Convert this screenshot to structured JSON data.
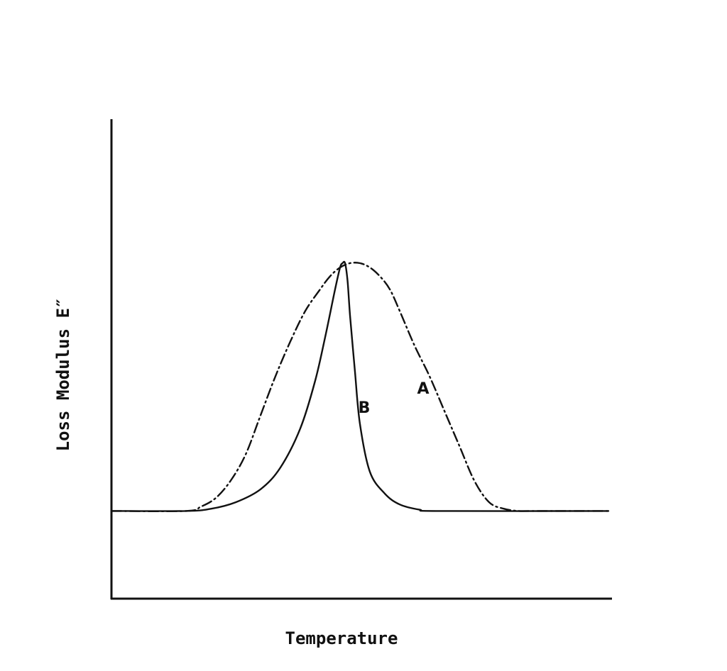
{
  "chart_data": {
    "type": "line",
    "xlabel": "Temperature",
    "ylabel": "Loss Modulus E″",
    "grid": false,
    "legend": "none",
    "x_ticks": "none",
    "y_ticks": "none",
    "xlim": [
      0,
      100
    ],
    "ylim": [
      0,
      100
    ],
    "baseline": 20,
    "series": [
      {
        "name": "A",
        "style": "dash-dot",
        "x": [
          0,
          15,
          18,
          21,
          24,
          27,
          30,
          33,
          36,
          39,
          42,
          44,
          46,
          48,
          50,
          52,
          54,
          56,
          58,
          61,
          64,
          67,
          70,
          73,
          76,
          79,
          82,
          85,
          100
        ],
        "y": [
          20,
          20,
          21,
          23,
          27,
          33,
          42,
          51,
          59,
          66,
          71,
          74,
          76,
          77,
          77,
          76,
          74,
          71,
          66,
          58,
          51,
          43,
          35,
          27,
          22,
          20.5,
          20,
          20,
          20
        ]
      },
      {
        "name": "B",
        "style": "solid",
        "x": [
          0,
          15,
          20,
          25,
          30,
          34,
          38,
          41,
          43,
          45,
          46,
          46.5,
          47,
          47.5,
          48,
          49,
          50,
          52,
          55,
          58,
          62,
          66,
          100
        ],
        "y": [
          20,
          20,
          20.5,
          22,
          25,
          30,
          39,
          50,
          60,
          71,
          76,
          77,
          77,
          73,
          65,
          52,
          40,
          29,
          24,
          21.5,
          20.3,
          20,
          20
        ]
      }
    ]
  }
}
